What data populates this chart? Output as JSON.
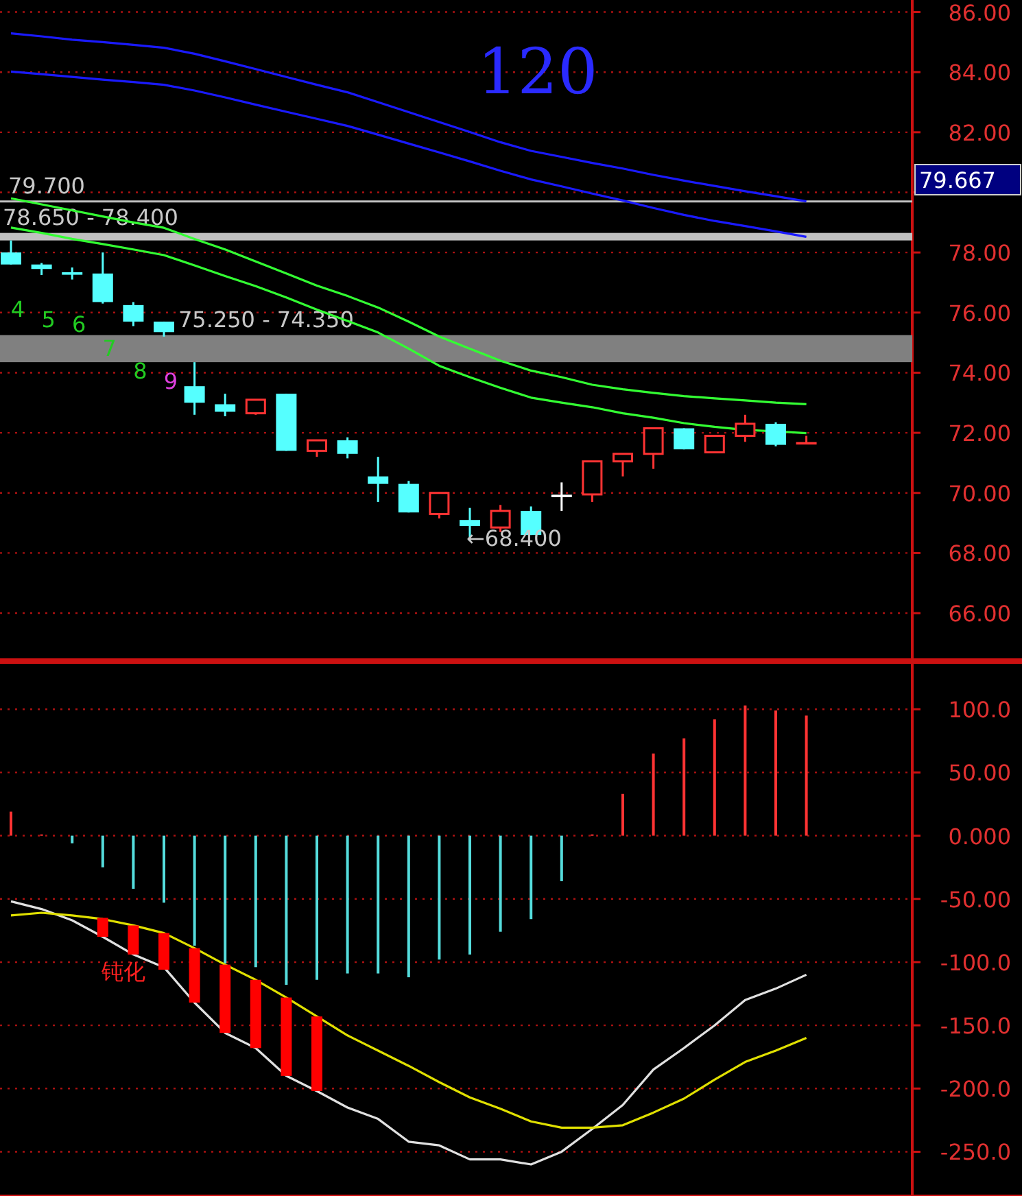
{
  "chart_data": [
    {
      "type": "candlestick",
      "categories": [
        null,
        null,
        null,
        null,
        null,
        null,
        null,
        null,
        null,
        null,
        null,
        null,
        null,
        null,
        null,
        null,
        null,
        null,
        null,
        null,
        null,
        null,
        null,
        null,
        null,
        null,
        null
      ],
      "ohlc": [
        [
          78.0,
          78.4,
          77.6,
          77.6
        ],
        [
          77.6,
          77.65,
          77.25,
          77.45
        ],
        [
          77.3,
          77.5,
          77.1,
          77.3
        ],
        [
          77.3,
          78.0,
          76.3,
          76.35
        ],
        [
          76.25,
          76.35,
          75.55,
          75.7
        ],
        [
          75.7,
          75.7,
          75.2,
          75.35
        ],
        [
          73.55,
          74.35,
          72.6,
          73.0
        ],
        [
          72.95,
          73.3,
          72.55,
          72.7
        ],
        [
          72.65,
          73.1,
          72.6,
          73.1
        ],
        [
          73.3,
          73.3,
          71.4,
          71.4
        ],
        [
          71.4,
          71.75,
          71.2,
          71.75
        ],
        [
          71.75,
          71.85,
          71.15,
          71.3
        ],
        [
          70.55,
          71.2,
          69.7,
          70.3
        ],
        [
          70.3,
          70.4,
          69.35,
          69.35
        ],
        [
          69.3,
          70.0,
          69.15,
          70.0
        ],
        [
          69.1,
          69.5,
          68.4,
          68.9
        ],
        [
          68.85,
          69.6,
          68.7,
          69.4
        ],
        [
          69.4,
          69.55,
          68.6,
          68.6
        ],
        [
          69.9,
          70.35,
          69.4,
          69.9
        ],
        [
          69.95,
          71.05,
          69.7,
          71.05
        ],
        [
          71.05,
          71.3,
          70.55,
          71.3
        ],
        [
          71.3,
          72.15,
          70.8,
          72.15
        ],
        [
          72.15,
          72.15,
          71.45,
          71.45
        ],
        [
          71.35,
          71.9,
          71.35,
          71.9
        ],
        [
          71.9,
          72.6,
          71.7,
          72.3
        ],
        [
          72.3,
          72.35,
          71.55,
          71.6
        ],
        [
          71.65,
          71.9,
          71.65,
          71.7
        ]
      ],
      "colors": [
        "#55ffff",
        "#55ffff",
        "#55ffff",
        "#55ffff",
        "#55ffff",
        "#55ffff",
        "#55ffff",
        "#55ffff",
        "#ff3333",
        "#55ffff",
        "#ff3333",
        "#55ffff",
        "#55ffff",
        "#55ffff",
        "#ff3333",
        "#55ffff",
        "#ff3333",
        "#55ffff",
        "#ffffff",
        "#ff3333",
        "#ff3333",
        "#ff3333",
        "#55ffff",
        "#ff3333",
        "#ff3333",
        "#55ffff",
        "#ff3333"
      ],
      "value_labels": [
        "4",
        "5",
        "6",
        "7",
        "8",
        "9",
        null,
        null,
        null,
        null,
        null,
        null,
        null,
        null,
        null,
        null,
        null,
        null,
        null,
        null,
        null,
        null,
        null,
        null,
        null,
        null,
        null
      ],
      "series": [
        {
          "type": "line",
          "color": "#1a1aff",
          "values": [
            85.29,
            85.19,
            85.08,
            85.0,
            84.91,
            84.81,
            84.61,
            84.36,
            84.1,
            83.84,
            83.58,
            83.33,
            83.0,
            82.67,
            82.34,
            82.01,
            81.67,
            81.38,
            81.18,
            80.98,
            80.79,
            80.58,
            80.39,
            80.21,
            80.04,
            79.87,
            79.7
          ]
        },
        {
          "type": "line",
          "color": "#1a1aff",
          "values": [
            84.02,
            83.93,
            83.84,
            83.75,
            83.67,
            83.58,
            83.39,
            83.16,
            82.92,
            82.68,
            82.45,
            82.21,
            81.92,
            81.62,
            81.33,
            81.03,
            80.72,
            80.43,
            80.2,
            79.96,
            79.73,
            79.48,
            79.25,
            79.05,
            78.88,
            78.7,
            78.52
          ]
        },
        {
          "type": "line",
          "color": "#33ff33",
          "values": [
            79.8,
            79.6,
            79.4,
            79.2,
            79.0,
            78.82,
            78.45,
            78.1,
            77.7,
            77.3,
            76.9,
            76.55,
            76.17,
            75.7,
            75.2,
            74.8,
            74.4,
            74.07,
            73.85,
            73.6,
            73.45,
            73.33,
            73.22,
            73.15,
            73.08,
            73.0,
            72.95
          ]
        },
        {
          "type": "line",
          "color": "#33ff33",
          "values": [
            78.83,
            78.65,
            78.45,
            78.28,
            78.1,
            77.91,
            77.57,
            77.22,
            76.88,
            76.5,
            76.1,
            75.72,
            75.34,
            74.8,
            74.23,
            73.85,
            73.5,
            73.17,
            73.0,
            72.85,
            72.65,
            72.5,
            72.32,
            72.2,
            72.1,
            72.05,
            71.99
          ]
        }
      ],
      "ylim": [
        64.45,
        86.4
      ],
      "yticks": [
        {
          "value": 66,
          "label": "66.00"
        },
        {
          "value": 68,
          "label": "68.00"
        },
        {
          "value": 70,
          "label": "70.00"
        },
        {
          "value": 72,
          "label": "72.00"
        },
        {
          "value": 74,
          "label": "74.00"
        },
        {
          "value": 76,
          "label": "76.00"
        },
        {
          "value": 78,
          "label": "78.00"
        },
        {
          "value": 80,
          "label": null
        },
        {
          "value": 82,
          "label": "82.00"
        },
        {
          "value": 84,
          "label": "84.00"
        },
        {
          "value": 86,
          "label": "86.00"
        }
      ],
      "ref_lines": [
        {
          "axis": "y",
          "value": 79.7,
          "label": "79.700",
          "color": "#c0c0c0"
        }
      ],
      "bands": [
        {
          "axis": "y",
          "from": 78.4,
          "to": 78.65,
          "label": "78.650 - 78.400",
          "color": "#c0c0c0"
        },
        {
          "axis": "y",
          "from": 74.35,
          "to": 75.25,
          "label": "75.250 - 74.350",
          "color": "#808080"
        }
      ],
      "annotations": [
        "120",
        "79.667",
        "←68.400"
      ],
      "grid": "y",
      "tick_labels": "y"
    },
    {
      "type": "bar",
      "categories": [
        null,
        null,
        null,
        null,
        null,
        null,
        null,
        null,
        null,
        null,
        null,
        null,
        null,
        null,
        null,
        null,
        null,
        null,
        null,
        null,
        null,
        null,
        null,
        null,
        null,
        null,
        null
      ],
      "series": [
        {
          "type": "bar",
          "values": [
            19,
            1,
            -6,
            -25,
            -42,
            -53,
            -87,
            -101,
            -104,
            -118,
            -114,
            -109,
            -109,
            -112,
            -98,
            -94,
            -76,
            -66,
            -36,
            1,
            33,
            65,
            77,
            92,
            103,
            99,
            95
          ],
          "colors": [
            "#ff3333",
            "#ff3333",
            "#55dddd",
            "#55dddd",
            "#55dddd",
            "#55dddd",
            "#55dddd",
            "#55dddd",
            "#55dddd",
            "#55dddd",
            "#55dddd",
            "#55dddd",
            "#55dddd",
            "#55dddd",
            "#55dddd",
            "#55dddd",
            "#55dddd",
            "#55dddd",
            "#55dddd",
            "#ff3333",
            "#ff3333",
            "#ff3333",
            "#ff3333",
            "#ff3333",
            "#ff3333",
            "#ff3333",
            "#ff3333"
          ]
        },
        {
          "type": "line",
          "color": "#e0e0e0",
          "values": [
            -52,
            -58,
            -67,
            -80,
            -94,
            -104,
            -132,
            -156,
            -168,
            -190,
            -202,
            -215,
            -224,
            -242,
            -245,
            -256,
            -256,
            -260,
            -250,
            -232,
            -213,
            -185,
            -168,
            -150,
            -130,
            -121,
            -110
          ]
        },
        {
          "type": "line",
          "color": "#e0e000",
          "values": [
            -63,
            -61,
            -63,
            -66,
            -71,
            -77,
            -89,
            -102,
            -114,
            -128,
            -143,
            -158,
            -170,
            -182,
            -195,
            -207,
            -216,
            -226,
            -231,
            -231,
            -229,
            -219,
            -208,
            -193,
            -179,
            -170,
            -160
          ]
        },
        {
          "type": "bar",
          "color": "#ff0000",
          "base": [
            null,
            null,
            null,
            -80,
            -94,
            -106,
            -132,
            -156,
            -168,
            -190,
            -202,
            null,
            null,
            null,
            null,
            null,
            null,
            null,
            null,
            null,
            null,
            null,
            null,
            null,
            null,
            null,
            null
          ],
          "values": [
            null,
            null,
            null,
            15,
            23,
            29,
            43,
            54,
            54,
            62,
            59,
            null,
            null,
            null,
            null,
            null,
            null,
            null,
            null,
            null,
            null,
            null,
            null,
            null,
            null,
            null,
            null
          ]
        }
      ],
      "ylim": [
        -285,
        137
      ],
      "yticks": [
        {
          "value": 100,
          "label": "100.0"
        },
        {
          "value": 50,
          "label": "50.00"
        },
        {
          "value": 0,
          "label": "0.000"
        },
        {
          "value": -50,
          "label": "-50.00"
        },
        {
          "value": -100,
          "label": "-100.0"
        },
        {
          "value": -150,
          "label": "-150.0"
        },
        {
          "value": -200,
          "label": "-200.0"
        },
        {
          "value": -250,
          "label": "-250.0"
        }
      ],
      "annotations": [
        "钝化"
      ],
      "grid": "y",
      "tick_labels": "y"
    }
  ]
}
